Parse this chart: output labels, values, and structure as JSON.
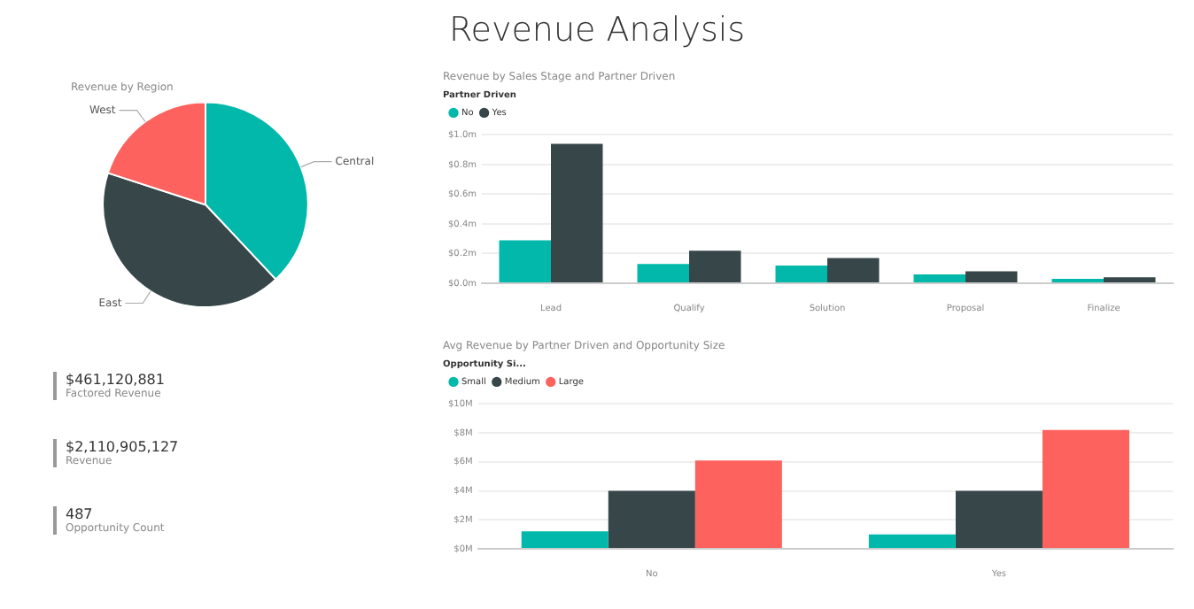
{
  "chart_data": [
    {
      "type": "other",
      "title": "Revenue Analysis"
    },
    {
      "type": "pie",
      "title": "Revenue by Region",
      "categories": [
        "Central",
        "East",
        "West"
      ],
      "values": [
        38,
        42,
        20
      ],
      "colors": [
        "#01b8aa",
        "#374649",
        "#fd625e"
      ],
      "legend": false
    },
    {
      "type": "bar",
      "title": "Revenue by Sales Stage and Partner Driven",
      "legend_title": "Partner Driven",
      "legend": "top left",
      "grid": "y",
      "categories": [
        "Lead",
        "Qualify",
        "Solution",
        "Proposal",
        "Finalize"
      ],
      "series": [
        {
          "name": "No",
          "color": "#01b8aa",
          "values": [
            0.29,
            0.13,
            0.12,
            0.06,
            0.03
          ]
        },
        {
          "name": "Yes",
          "color": "#374649",
          "values": [
            0.94,
            0.22,
            0.17,
            0.08,
            0.04
          ]
        }
      ],
      "ylim": [
        0,
        1
      ],
      "yticks": [
        {
          "value": 0,
          "label": "$0.0m"
        },
        {
          "value": 0.2,
          "label": "$0.2m"
        },
        {
          "value": 0.4,
          "label": "$0.4m"
        },
        {
          "value": 0.6,
          "label": "$0.6m"
        },
        {
          "value": 0.8,
          "label": "$0.8m"
        },
        {
          "value": 1,
          "label": "$1.0m"
        }
      ]
    },
    {
      "type": "bar",
      "title": "Avg Revenue by Partner Driven and Opportunity Size",
      "legend_title": "Opportunity Si...",
      "legend": "top left",
      "grid": "y",
      "categories": [
        "No",
        "Yes"
      ],
      "series": [
        {
          "name": "Small",
          "color": "#01b8aa",
          "values": [
            1.2,
            1.0
          ]
        },
        {
          "name": "Medium",
          "color": "#374649",
          "values": [
            4.0,
            4.0
          ]
        },
        {
          "name": "Large",
          "color": "#fd625e",
          "values": [
            6.1,
            8.2
          ]
        }
      ],
      "ylim": [
        0,
        10
      ],
      "yticks": [
        {
          "value": 0,
          "label": "$0M"
        },
        {
          "value": 2,
          "label": "$2M"
        },
        {
          "value": 4,
          "label": "$4M"
        },
        {
          "value": 6,
          "label": "$6M"
        },
        {
          "value": 8,
          "label": "$8M"
        },
        {
          "value": 10,
          "label": "$10M"
        }
      ]
    },
    {
      "type": "other",
      "annotations": [
        "$461,120,881",
        "Factored Revenue",
        "$2,110,905,127",
        "Revenue",
        "487",
        "Opportunity Count"
      ]
    }
  ]
}
